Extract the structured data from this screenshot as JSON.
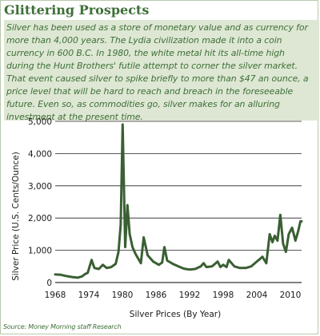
{
  "title": "Glittering Prospects",
  "description": "Silver has been used as a store of monetary value and as currency for more than 4,000 years.  The Lydia civilization made it into a coin currency in 600 B.C.  In 1980, the white metal hit its all-time high during the Hunt Brothers' futile attempt to corner the silver market. That event caused silver to spike briefly to more than $47 an ounce, a price level that will be hard to reach and breach in the foreseeable future. Even so, as commodities go, silver makes for an alluring investment at the present time.",
  "source": "Source: Money Morning staff Research",
  "colors": {
    "accent": "#3f6f38",
    "line": "#3a5f33",
    "panel": "#dde7d3"
  },
  "chart_data": {
    "type": "line",
    "xlabel": "Silver Prices (By Year)",
    "ylabel": "Silver Price (U.S. Cents/Ounce)",
    "xlim": [
      1968,
      2012
    ],
    "ylim": [
      0,
      5000
    ],
    "x_ticks": [
      "1968",
      "1974",
      "1980",
      "1986",
      "1992",
      "1998",
      "2004",
      "2010"
    ],
    "y_ticks": [
      "0",
      "1,000",
      "2,000",
      "3,000",
      "4,000",
      "5,000"
    ],
    "grid": true,
    "series": [
      {
        "x": [
          1968,
          1969,
          1970,
          1971,
          1972,
          1972.8,
          1973.3,
          1973.8,
          1974.5,
          1975,
          1975.8,
          1976.5,
          1977.2,
          1978,
          1978.8,
          1979.3,
          1979.7,
          1980.05,
          1980.25,
          1980.5,
          1980.9,
          1981.3,
          1981.8,
          1982.3,
          1982.8,
          1983.3,
          1983.8,
          1984.5,
          1985.5,
          1986.5,
          1987.1,
          1987.5,
          1988,
          1989,
          1990,
          1991,
          1992,
          1993,
          1994,
          1994.5,
          1995,
          1996,
          1997,
          1997.5,
          1998,
          1998.6,
          1999,
          2000,
          2001,
          2002,
          2003,
          2004,
          2004.5,
          2005,
          2005.7,
          2006.3,
          2006.8,
          2007.2,
          2007.7,
          2008.2,
          2008.7,
          2009.2,
          2009.7,
          2010.3,
          2010.9,
          2011.4,
          2011.8,
          2012
        ],
        "y": [
          250,
          240,
          200,
          170,
          150,
          190,
          260,
          300,
          700,
          450,
          420,
          550,
          450,
          480,
          580,
          950,
          1800,
          4900,
          3100,
          1100,
          2400,
          1500,
          1100,
          900,
          750,
          600,
          1400,
          850,
          650,
          550,
          620,
          1100,
          680,
          580,
          500,
          430,
          400,
          420,
          500,
          600,
          480,
          500,
          650,
          480,
          550,
          480,
          700,
          500,
          450,
          450,
          500,
          650,
          720,
          800,
          600,
          1500,
          1250,
          1450,
          1300,
          2100,
          1200,
          950,
          1500,
          1700,
          1300,
          1600,
          1900,
          1900
        ]
      }
    ]
  }
}
